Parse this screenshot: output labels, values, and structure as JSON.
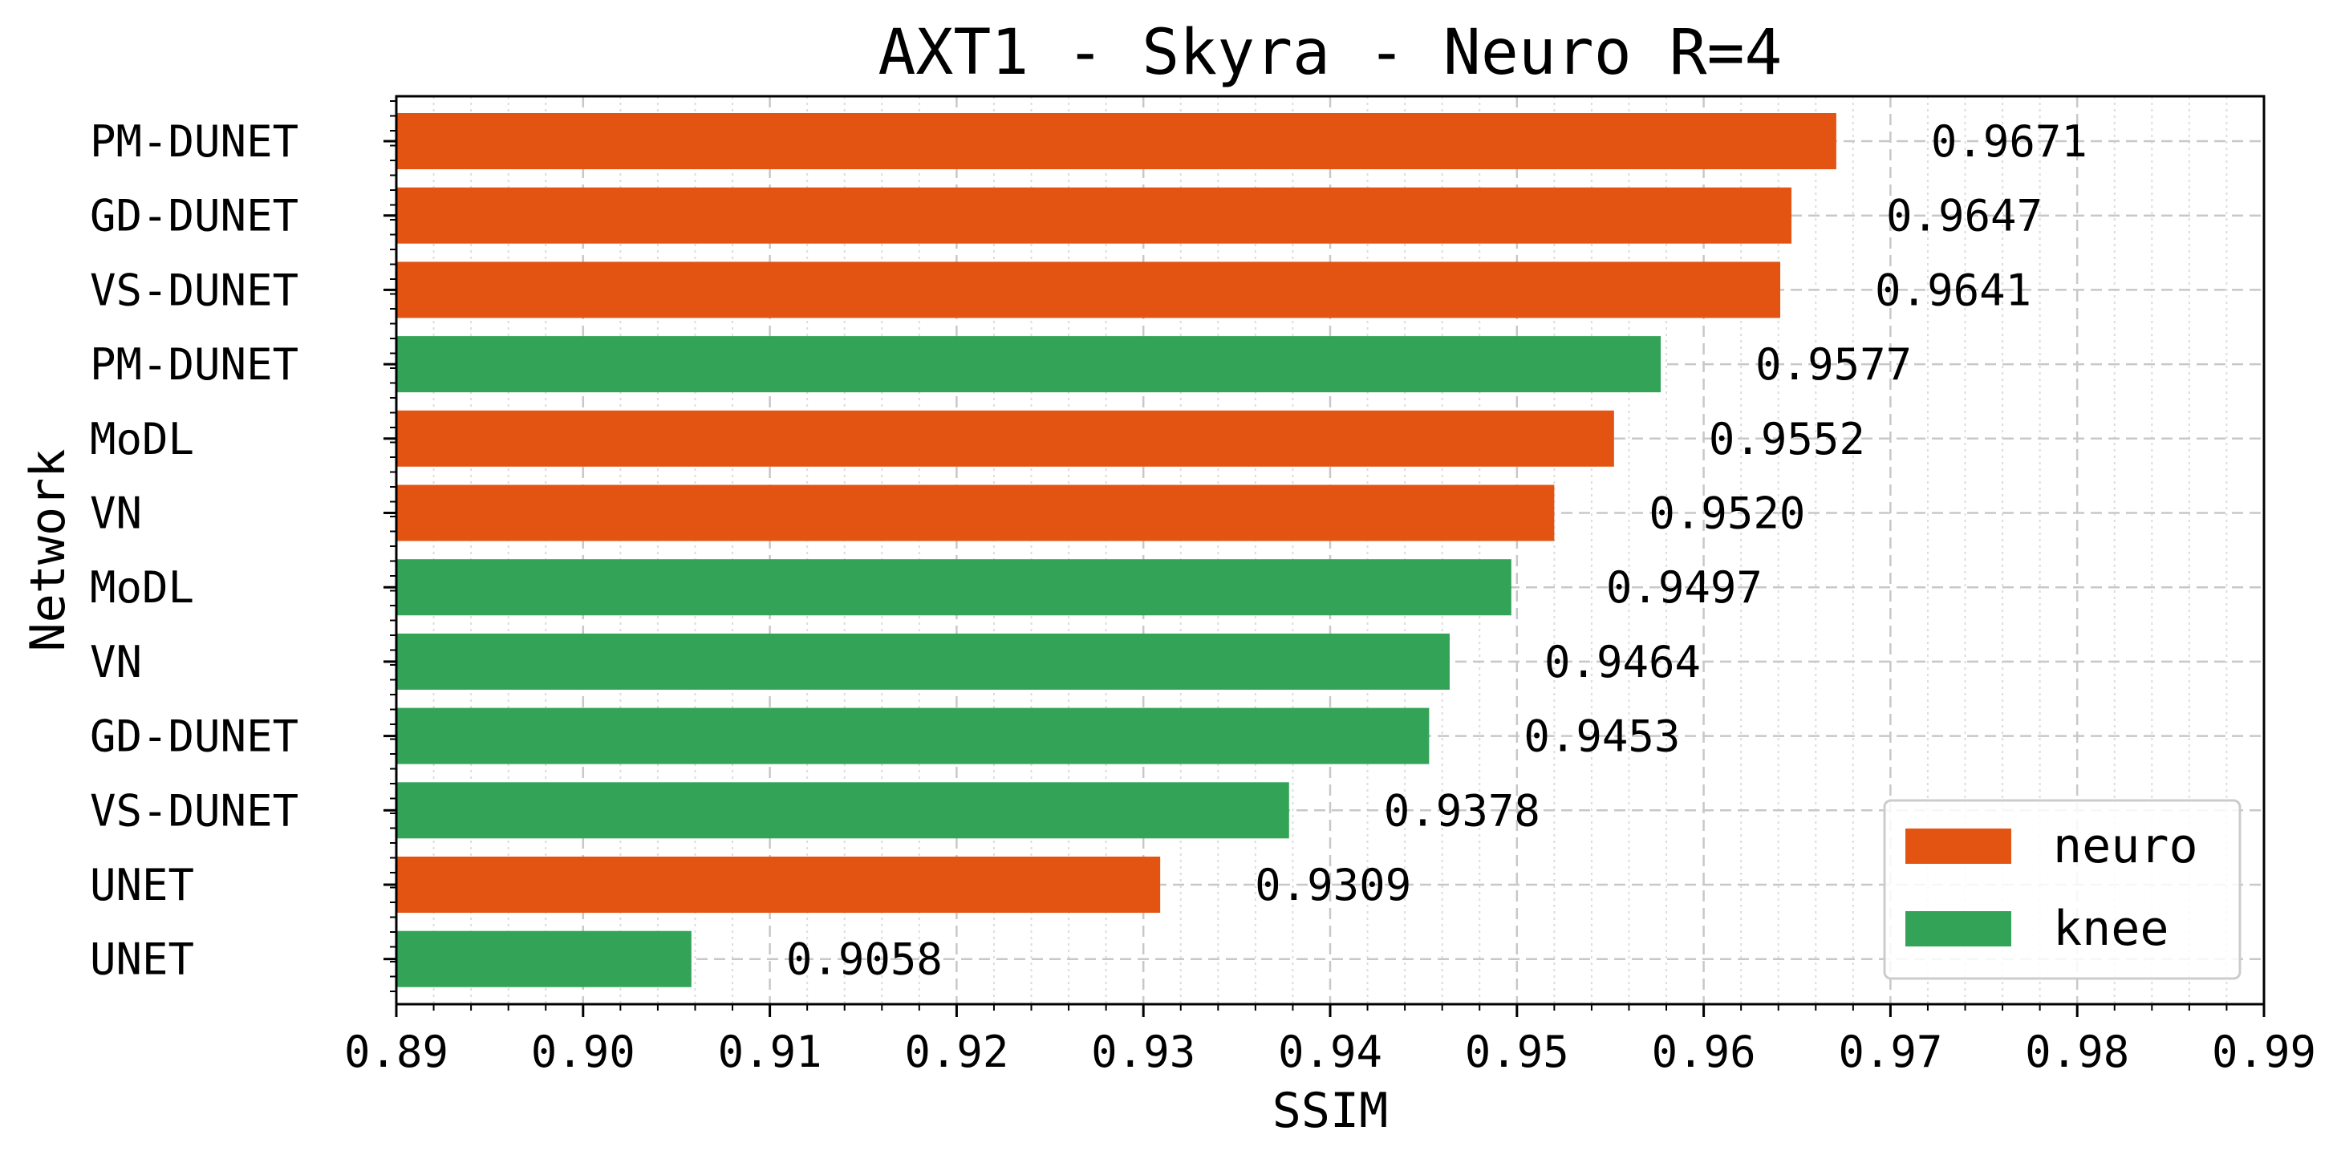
{
  "chart_data": {
    "type": "bar",
    "orientation": "horizontal",
    "title": "AXT1 - Skyra - Neuro R=4",
    "xlabel": "SSIM",
    "ylabel": "Network",
    "xlim": [
      0.89,
      0.99
    ],
    "xticks": [
      "0.89",
      "0.90",
      "0.91",
      "0.92",
      "0.93",
      "0.94",
      "0.95",
      "0.96",
      "0.97",
      "0.98",
      "0.99"
    ],
    "grid": true,
    "legend_position": "bottom-right",
    "legend": [
      {
        "name": "neuro",
        "color": "#e35413"
      },
      {
        "name": "knee",
        "color": "#33a457"
      }
    ],
    "bars": [
      {
        "label": "PM-DUNET",
        "value": 0.9671,
        "value_label": "0.9671",
        "group": "neuro"
      },
      {
        "label": "GD-DUNET",
        "value": 0.9647,
        "value_label": "0.9647",
        "group": "neuro"
      },
      {
        "label": "VS-DUNET",
        "value": 0.9641,
        "value_label": "0.9641",
        "group": "neuro"
      },
      {
        "label": "PM-DUNET",
        "value": 0.9577,
        "value_label": "0.9577",
        "group": "knee"
      },
      {
        "label": "MoDL",
        "value": 0.9552,
        "value_label": "0.9552",
        "group": "neuro"
      },
      {
        "label": "VN",
        "value": 0.952,
        "value_label": "0.9520",
        "group": "neuro"
      },
      {
        "label": "MoDL",
        "value": 0.9497,
        "value_label": "0.9497",
        "group": "knee"
      },
      {
        "label": "VN",
        "value": 0.9464,
        "value_label": "0.9464",
        "group": "knee"
      },
      {
        "label": "GD-DUNET",
        "value": 0.9453,
        "value_label": "0.9453",
        "group": "knee"
      },
      {
        "label": "VS-DUNET",
        "value": 0.9378,
        "value_label": "0.9378",
        "group": "knee"
      },
      {
        "label": "UNET",
        "value": 0.9309,
        "value_label": "0.9309",
        "group": "neuro"
      },
      {
        "label": "UNET",
        "value": 0.9058,
        "value_label": "0.9058",
        "group": "knee"
      }
    ]
  }
}
